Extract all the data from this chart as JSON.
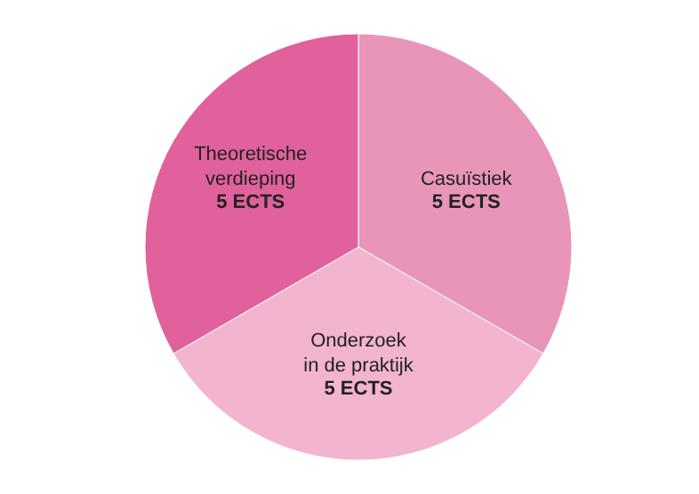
{
  "chart_data": {
    "type": "pie",
    "categories": [
      "Casuïstiek",
      "Onderzoek in de praktijk",
      "Theoretische verdieping"
    ],
    "values": [
      5,
      5,
      5
    ],
    "colors": [
      "#e895b9",
      "#f2b4cf",
      "#e0619b"
    ],
    "value_labels": [
      "5 ECTS",
      "5 ECTS",
      "5 ECTS"
    ]
  }
}
